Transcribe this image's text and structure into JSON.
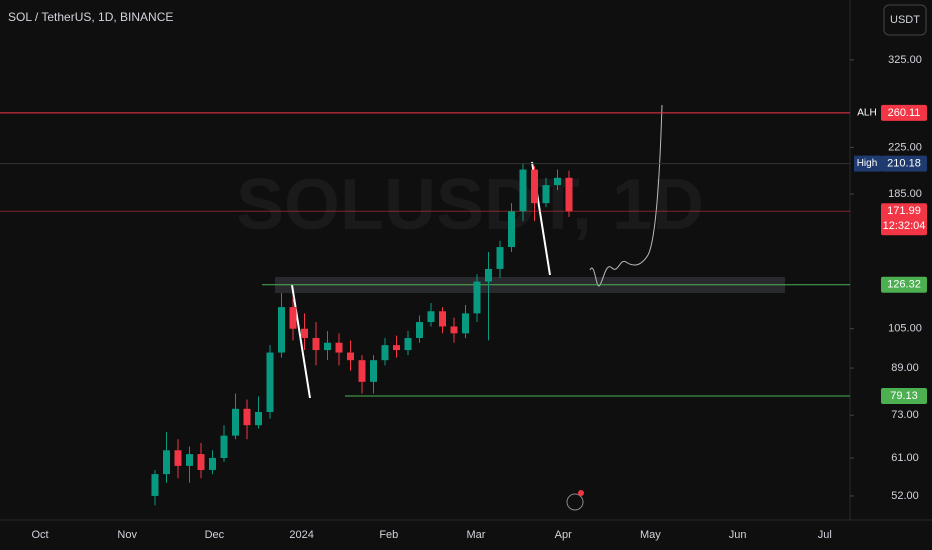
{
  "chart_data": {
    "type": "candlestick",
    "title": "SOL / TetherUS, 1D, BINANCE",
    "watermark": "SOLUSDT, 1D",
    "currency": "USDT",
    "log_scale": true,
    "ylim": [
      47,
      418
    ],
    "yticks": [
      {
        "value": 325,
        "label": "325.00"
      },
      {
        "value": 225,
        "label": "225.00"
      },
      {
        "value": 185,
        "label": "185.00"
      },
      {
        "value": 105,
        "label": "105.00"
      },
      {
        "value": 89,
        "label": "89.00"
      },
      {
        "value": 73,
        "label": "73.00"
      },
      {
        "value": 61,
        "label": "61.00"
      },
      {
        "value": 52,
        "label": "52.00"
      }
    ],
    "x_labels": [
      "Oct",
      "Nov",
      "Dec",
      "2024",
      "Feb",
      "Mar",
      "Apr",
      "May",
      "Jun",
      "Jul"
    ],
    "up_color": "#089981",
    "down_color": "#f23645",
    "open": [
      52,
      57,
      63,
      59,
      62,
      58,
      61,
      67,
      75,
      70,
      74,
      95,
      115,
      105,
      101,
      96,
      99,
      95,
      92,
      84,
      92,
      98,
      96,
      101,
      108,
      113,
      106,
      103,
      112,
      128,
      135,
      148,
      172,
      205,
      178,
      192,
      198
    ],
    "high": [
      58,
      68,
      66,
      64,
      65,
      63,
      70,
      80,
      78,
      79,
      98,
      122,
      120,
      112,
      108,
      104,
      103,
      100,
      94,
      94,
      101,
      102,
      104,
      111,
      117,
      115,
      110,
      116,
      132,
      145,
      152,
      178,
      210,
      208,
      198,
      205,
      204
    ],
    "low": [
      50,
      55,
      56,
      55,
      56,
      57,
      60,
      66,
      66,
      69,
      72,
      93,
      100,
      96,
      90,
      92,
      90,
      88,
      80,
      80,
      90,
      93,
      94,
      99,
      106,
      103,
      99,
      101,
      108,
      100,
      130,
      145,
      165,
      165,
      175,
      188,
      168
    ],
    "close": [
      57,
      63,
      59,
      62,
      58,
      61,
      67,
      75,
      70,
      74,
      95,
      115,
      105,
      101,
      96,
      99,
      95,
      92,
      84,
      92,
      98,
      96,
      101,
      108,
      113,
      106,
      103,
      112,
      128,
      135,
      148,
      172,
      205,
      178,
      192,
      198,
      172
    ],
    "price_levels": [
      {
        "label": "ALH",
        "value": 260.11,
        "color": "#f23645"
      },
      {
        "label": "High",
        "value": 210.18,
        "color": "#1e3a6e"
      },
      {
        "value": 171.99,
        "countdown": "12:32:04",
        "color": "#f23645"
      },
      {
        "value": 126.32,
        "color": "#4caf50"
      },
      {
        "value": 79.13,
        "color": "#4caf50"
      }
    ]
  }
}
